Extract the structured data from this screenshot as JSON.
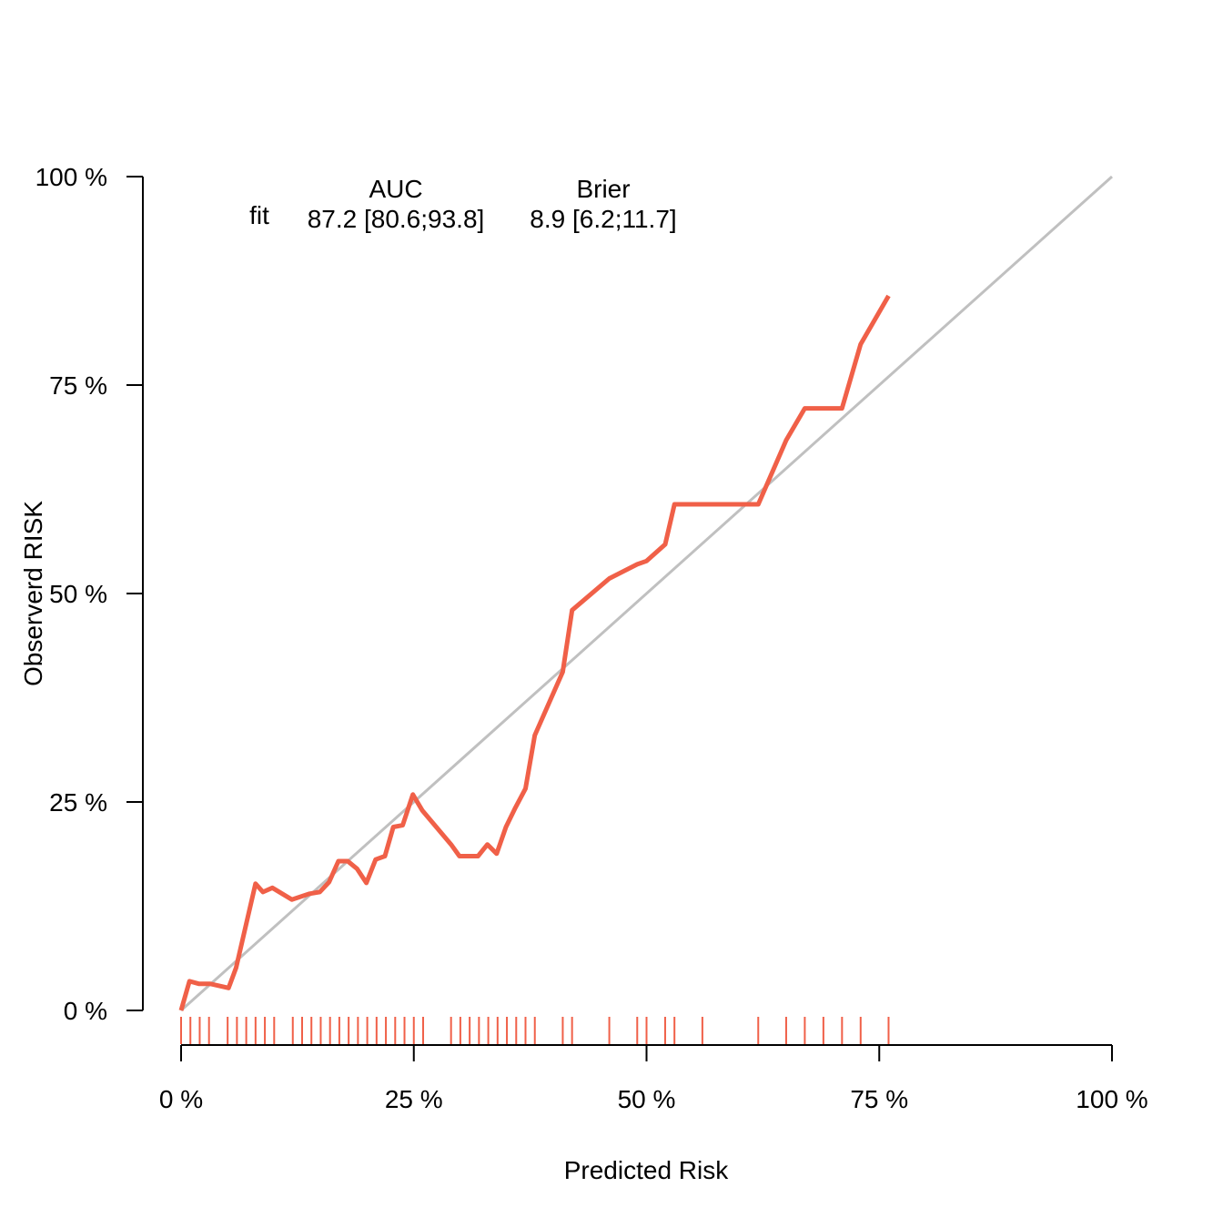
{
  "chart_data": {
    "type": "line",
    "title": "",
    "xlabel": "Predicted Risk",
    "ylabel": "Observerd RISK",
    "xlim": [
      0,
      100
    ],
    "ylim": [
      0,
      100
    ],
    "x_ticks": [
      {
        "value": 0,
        "label": "0 %"
      },
      {
        "value": 25,
        "label": "25 %"
      },
      {
        "value": 50,
        "label": "50 %"
      },
      {
        "value": 75,
        "label": "75 %"
      },
      {
        "value": 100,
        "label": "100 %"
      }
    ],
    "y_ticks": [
      {
        "value": 0,
        "label": "0 %"
      },
      {
        "value": 25,
        "label": "25 %"
      },
      {
        "value": 50,
        "label": "50 %"
      },
      {
        "value": 75,
        "label": "75 %"
      },
      {
        "value": 100,
        "label": "100 %"
      }
    ],
    "grid": false,
    "legend": {
      "placement": "top-left",
      "header_auc": "AUC",
      "header_brier": "Brier",
      "rows": [
        {
          "name": "fit",
          "auc": "87.2 [80.6;93.8]",
          "brier": "8.9 [6.2;11.7]"
        }
      ]
    },
    "reference_line": {
      "x": [
        0,
        100
      ],
      "y": [
        0,
        100
      ],
      "color": "#c0c0c0"
    },
    "series": [
      {
        "name": "fit",
        "color": "#f06048",
        "x": [
          0,
          0.9,
          1.9,
          3.1,
          5.1,
          5.9,
          8.0,
          8.8,
          9.8,
          11.9,
          13.8,
          14.9,
          15.9,
          16.9,
          17.9,
          18.9,
          19.9,
          20.9,
          21.9,
          22.8,
          23.8,
          24.9,
          25.9,
          29.0,
          29.9,
          31.0,
          31.9,
          32.9,
          33.9,
          34.9,
          35.9,
          37.0,
          38.0,
          41.0,
          42.0,
          46.0,
          49.0,
          50.0,
          52.0,
          53.0,
          62.0,
          65.0,
          67.0,
          69.0,
          71.0,
          73.0,
          76.0
        ],
        "y": [
          0,
          3.5,
          3.2,
          3.2,
          2.7,
          5.1,
          15.2,
          14.2,
          14.7,
          13.3,
          14.0,
          14.2,
          15.4,
          17.9,
          17.9,
          17.0,
          15.3,
          18.1,
          18.5,
          22.0,
          22.2,
          25.9,
          24.0,
          19.9,
          18.5,
          18.5,
          18.5,
          19.9,
          18.8,
          22.0,
          24.3,
          26.6,
          33.0,
          40.6,
          48.0,
          51.8,
          53.5,
          53.9,
          55.9,
          60.7,
          60.7,
          68.4,
          72.2,
          72.2,
          72.2,
          79.9,
          85.7
        ]
      }
    ],
    "rug": {
      "color": "#f06048",
      "x": [
        0,
        1,
        2,
        3,
        5,
        6,
        7,
        8,
        9,
        10,
        12,
        13,
        14,
        15,
        16,
        17,
        18,
        19,
        20,
        21,
        22,
        23,
        24,
        25,
        26,
        29,
        30,
        31,
        32,
        33,
        34,
        35,
        36,
        37,
        38,
        41,
        42,
        46,
        49,
        50,
        52,
        53,
        56,
        62,
        65,
        67,
        69,
        71,
        73,
        76
      ]
    }
  }
}
